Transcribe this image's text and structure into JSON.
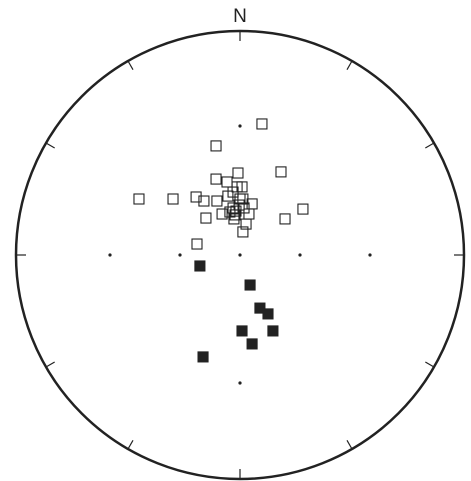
{
  "chart_data": {
    "type": "scatter",
    "annotation": "N",
    "xlim": [
      -1,
      1
    ],
    "ylim": [
      -1,
      1
    ],
    "series": [
      {
        "color": "#222222",
        "filled": false,
        "x": [
          0.098,
          -0.107,
          -0.009,
          0.183,
          -0.107,
          -0.058,
          0.009,
          -0.013,
          -0.451,
          -0.299,
          -0.196,
          -0.161,
          -0.103,
          -0.054,
          -0.031,
          0.013,
          0.054,
          -0.004,
          -0.031,
          0.018,
          -0.045,
          -0.08,
          -0.022,
          0.04,
          -0.152,
          0.201,
          0.281,
          -0.027,
          0.027,
          0.013,
          -0.192,
          -0.018,
          0
        ],
        "values": [
          0.585,
          0.487,
          0.366,
          0.371,
          0.339,
          0.326,
          0.304,
          0.304,
          0.25,
          0.25,
          0.259,
          0.241,
          0.241,
          0.263,
          0.281,
          0.25,
          0.228,
          0.223,
          0.21,
          0.21,
          0.192,
          0.183,
          0.179,
          0.183,
          0.165,
          0.161,
          0.205,
          0.161,
          0.138,
          0.103,
          0.049,
          0.196,
          0.25
        ]
      },
      {
        "color": "#222222",
        "filled": true,
        "x": [
          -0.179,
          0.045,
          0.089,
          0.125,
          0.009,
          0.147,
          0.054,
          -0.165
        ],
        "values": [
          -0.049,
          -0.134,
          -0.237,
          -0.263,
          -0.339,
          -0.339,
          -0.397,
          -0.455
        ]
      }
    ]
  }
}
